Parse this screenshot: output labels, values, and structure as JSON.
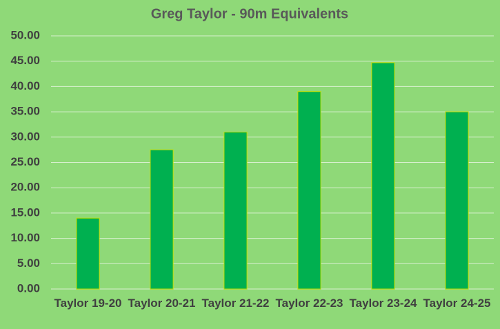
{
  "chart_data": {
    "type": "bar",
    "title": "Greg Taylor - 90m Equivalents",
    "categories": [
      "Taylor 19-20",
      "Taylor 20-21",
      "Taylor 21-22",
      "Taylor 22-23",
      "Taylor 23-24",
      "Taylor 24-25"
    ],
    "values": [
      14.0,
      27.5,
      31.0,
      39.0,
      44.7,
      35.0
    ],
    "color": "#00b050",
    "ylim": [
      0,
      50
    ],
    "yticks": [
      {
        "value": 0,
        "label": "0.00"
      },
      {
        "value": 5,
        "label": "5.00"
      },
      {
        "value": 10,
        "label": "10.00"
      },
      {
        "value": 15,
        "label": "15.00"
      },
      {
        "value": 20,
        "label": "20.00"
      },
      {
        "value": 25,
        "label": "25.00"
      },
      {
        "value": 30,
        "label": "30.00"
      },
      {
        "value": 35,
        "label": "35.00"
      },
      {
        "value": 40,
        "label": "40.00"
      },
      {
        "value": 45,
        "label": "45.00"
      },
      {
        "value": 50,
        "label": "50.00"
      }
    ],
    "grid": true
  }
}
